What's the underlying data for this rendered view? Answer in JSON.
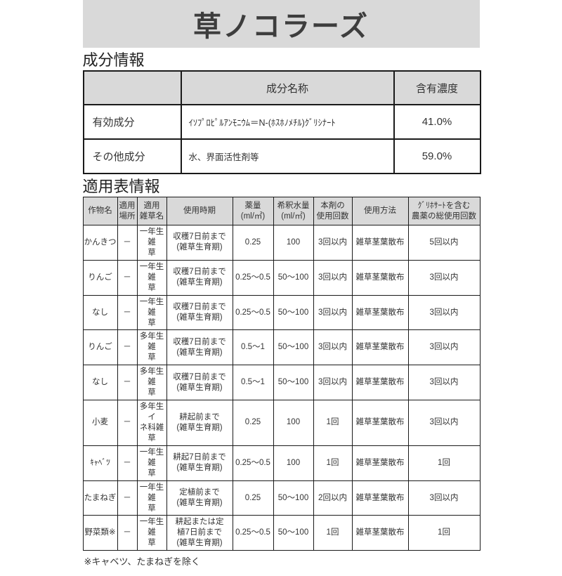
{
  "banner": {
    "title": "草ノコラーズ"
  },
  "ingredient_section": {
    "heading": "成分情報",
    "table": {
      "col_headers": [
        "",
        "成分名称",
        "含有濃度"
      ],
      "rows": [
        {
          "category": "有効成分",
          "name": "ｲｿﾌﾟﾛﾋﾟﾙｱﾝﾓﾆｳﾑ＝N-(ﾎｽﾎﾉﾒﾁﾙ)ｸﾞﾘｼﾅｰﾄ",
          "concentration": "41.0%"
        },
        {
          "category": "その他成分",
          "name": "水、界面活性剤等",
          "concentration": "59.0%"
        }
      ]
    }
  },
  "application_section": {
    "heading": "適用表情報",
    "table": {
      "col_headers": [
        "作物名",
        "適用\n場所",
        "適用\n雑草名",
        "使用時期",
        "薬量\n(ml/㎡)",
        "希釈水量\n(ml/㎡)",
        "本剤の\n使用回数",
        "使用方法",
        "ｸﾞﾘﾎｻｰﾄを含む\n農薬の総使用回数"
      ],
      "rows": [
        [
          "かんきつ",
          "－",
          "一年生雑\n草",
          "収穫7日前まで\n(雑草生育期)",
          "0.25",
          "100",
          "3回以内",
          "雑草茎葉散布",
          "5回以内"
        ],
        [
          "りんご",
          "－",
          "一年生雑\n草",
          "収穫7日前まで\n(雑草生育期)",
          "0.25～0.5",
          "50～100",
          "3回以内",
          "雑草茎葉散布",
          "3回以内"
        ],
        [
          "なし",
          "－",
          "一年生雑\n草",
          "収穫7日前まで\n(雑草生育期)",
          "0.25～0.5",
          "50～100",
          "3回以内",
          "雑草茎葉散布",
          "3回以内"
        ],
        [
          "りんご",
          "－",
          "多年生雑\n草",
          "収穫7日前まで\n(雑草生育期)",
          "0.5～1",
          "50～100",
          "3回以内",
          "雑草茎葉散布",
          "3回以内"
        ],
        [
          "なし",
          "－",
          "多年生雑\n草",
          "収穫7日前まで\n(雑草生育期)",
          "0.5～1",
          "50～100",
          "3回以内",
          "雑草茎葉散布",
          "3回以内"
        ],
        [
          "小麦",
          "－",
          "多年生イ\nネ科雑草",
          "耕起前まで\n(雑草生育期)",
          "0.25",
          "100",
          "1回",
          "雑草茎葉散布",
          "3回以内"
        ],
        [
          "ｷｬﾍﾞﾂ",
          "－",
          "一年生雑\n草",
          "耕起7日前まで\n(雑草生育期)",
          "0.25～0.5",
          "100",
          "1回",
          "雑草茎葉散布",
          "1回"
        ],
        [
          "たまねぎ",
          "－",
          "一年生雑\n草",
          "定植前まで\n(雑草生育期)",
          "0.25",
          "50～100",
          "2回以内",
          "雑草茎葉散布",
          "3回以内"
        ],
        [
          "野菜類※",
          "－",
          "一年生雑\n草",
          "耕起または定\n植7日前まで\n(雑草生育期)",
          "0.25～0.5",
          "50～100",
          "1回",
          "雑草茎葉散布",
          "1回"
        ]
      ]
    },
    "footnote": "※キャベツ、たまねぎを除く"
  },
  "colors": {
    "banner_bg": "#d9d9d9",
    "header_cell_bg": "#d9d9d9",
    "border_dark": "#1a1a1a",
    "text": "#333333"
  }
}
